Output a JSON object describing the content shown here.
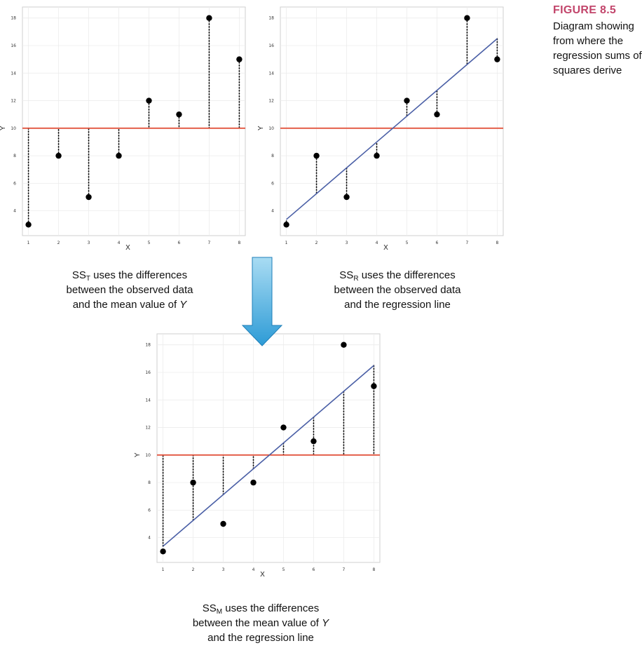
{
  "figure": {
    "label": "FIGURE 8.5",
    "description": "Diagram showing from where the regression sums of squares derive"
  },
  "colors": {
    "mean_line": "#e2553f",
    "regression_line": "#4a5fa6",
    "points": "#000000",
    "grid": "#ececec",
    "arrow_top": "#a9dcf3",
    "arrow_bottom": "#2d9bd6",
    "arrow_stroke": "#1f7fb8",
    "accent_label": "#c2456b"
  },
  "captions": {
    "sst": {
      "prefix": "SS",
      "sub": "T",
      "line1": " uses the differences",
      "line2": "between the observed data",
      "line3_a": "and the mean value of ",
      "line3_b": "Y"
    },
    "ssr": {
      "prefix": "SS",
      "sub": "R",
      "line1": " uses the differences",
      "line2": "between the observed data",
      "line3": "and the regression line"
    },
    "ssm": {
      "prefix": "SS",
      "sub": "M",
      "line1": " uses the differences",
      "line2_a": "between the mean value of ",
      "line2_b": "Y",
      "line3": "and the regression line"
    }
  },
  "chart_data": [
    {
      "id": "sst",
      "type": "scatter",
      "title": "",
      "xlabel": "X",
      "ylabel": "Y",
      "xlim": [
        0.8,
        8.2
      ],
      "ylim": [
        2.2,
        18.8
      ],
      "xticks": [
        1,
        2,
        3,
        4,
        5,
        6,
        7,
        8
      ],
      "yticks": [
        4,
        6,
        8,
        10,
        12,
        14,
        16,
        18
      ],
      "grid": true,
      "x": [
        1,
        2,
        3,
        4,
        5,
        6,
        7,
        8
      ],
      "y": [
        3,
        8,
        5,
        8,
        12,
        11,
        18,
        15
      ],
      "mean": 10,
      "regression": null,
      "segments": "point-to-mean"
    },
    {
      "id": "ssr",
      "type": "scatter",
      "title": "",
      "xlabel": "X",
      "ylabel": "Y",
      "xlim": [
        0.8,
        8.2
      ],
      "ylim": [
        2.2,
        18.8
      ],
      "xticks": [
        1,
        2,
        3,
        4,
        5,
        6,
        7,
        8
      ],
      "yticks": [
        4,
        6,
        8,
        10,
        12,
        14,
        16,
        18
      ],
      "grid": true,
      "x": [
        1,
        2,
        3,
        4,
        5,
        6,
        7,
        8
      ],
      "y": [
        3,
        8,
        5,
        8,
        12,
        11,
        18,
        15
      ],
      "mean": 10,
      "regression": {
        "intercept": 1.5,
        "slope": 1.875
      },
      "segments": "point-to-regression"
    },
    {
      "id": "ssm",
      "type": "scatter",
      "title": "",
      "xlabel": "X",
      "ylabel": "Y",
      "xlim": [
        0.8,
        8.2
      ],
      "ylim": [
        2.2,
        18.8
      ],
      "xticks": [
        1,
        2,
        3,
        4,
        5,
        6,
        7,
        8
      ],
      "yticks": [
        4,
        6,
        8,
        10,
        12,
        14,
        16,
        18
      ],
      "grid": true,
      "x": [
        1,
        2,
        3,
        4,
        5,
        6,
        7,
        8
      ],
      "y": [
        3,
        8,
        5,
        8,
        12,
        11,
        18,
        15
      ],
      "mean": 10,
      "regression": {
        "intercept": 1.5,
        "slope": 1.875
      },
      "segments": "mean-to-regression"
    }
  ]
}
